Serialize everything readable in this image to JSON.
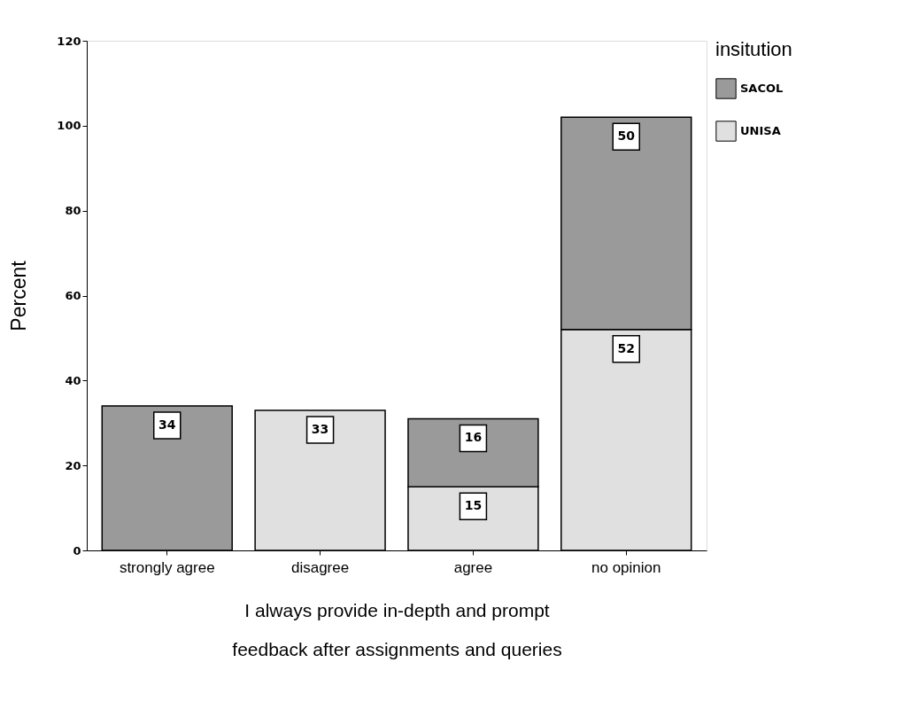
{
  "chart_data": {
    "type": "bar",
    "stacked": true,
    "categories": [
      "strongly agree",
      "disagree",
      "agree",
      "no opinion"
    ],
    "series": [
      {
        "name": "UNISA",
        "color": "#e0e0e0",
        "values": [
          null,
          33,
          15,
          52
        ]
      },
      {
        "name": "SACOL",
        "color": "#9a9a9a",
        "values": [
          34,
          null,
          16,
          50
        ]
      }
    ],
    "ylabel": "Percent",
    "xlabel": "I always provide in-depth and prompt\nfeedback after assignments and queries",
    "legend_title": "insitution",
    "legend": "right",
    "ylim": [
      0,
      120
    ],
    "yticks": [
      0,
      20,
      40,
      60,
      80,
      100,
      120
    ],
    "grid": false,
    "data_labels": true
  }
}
